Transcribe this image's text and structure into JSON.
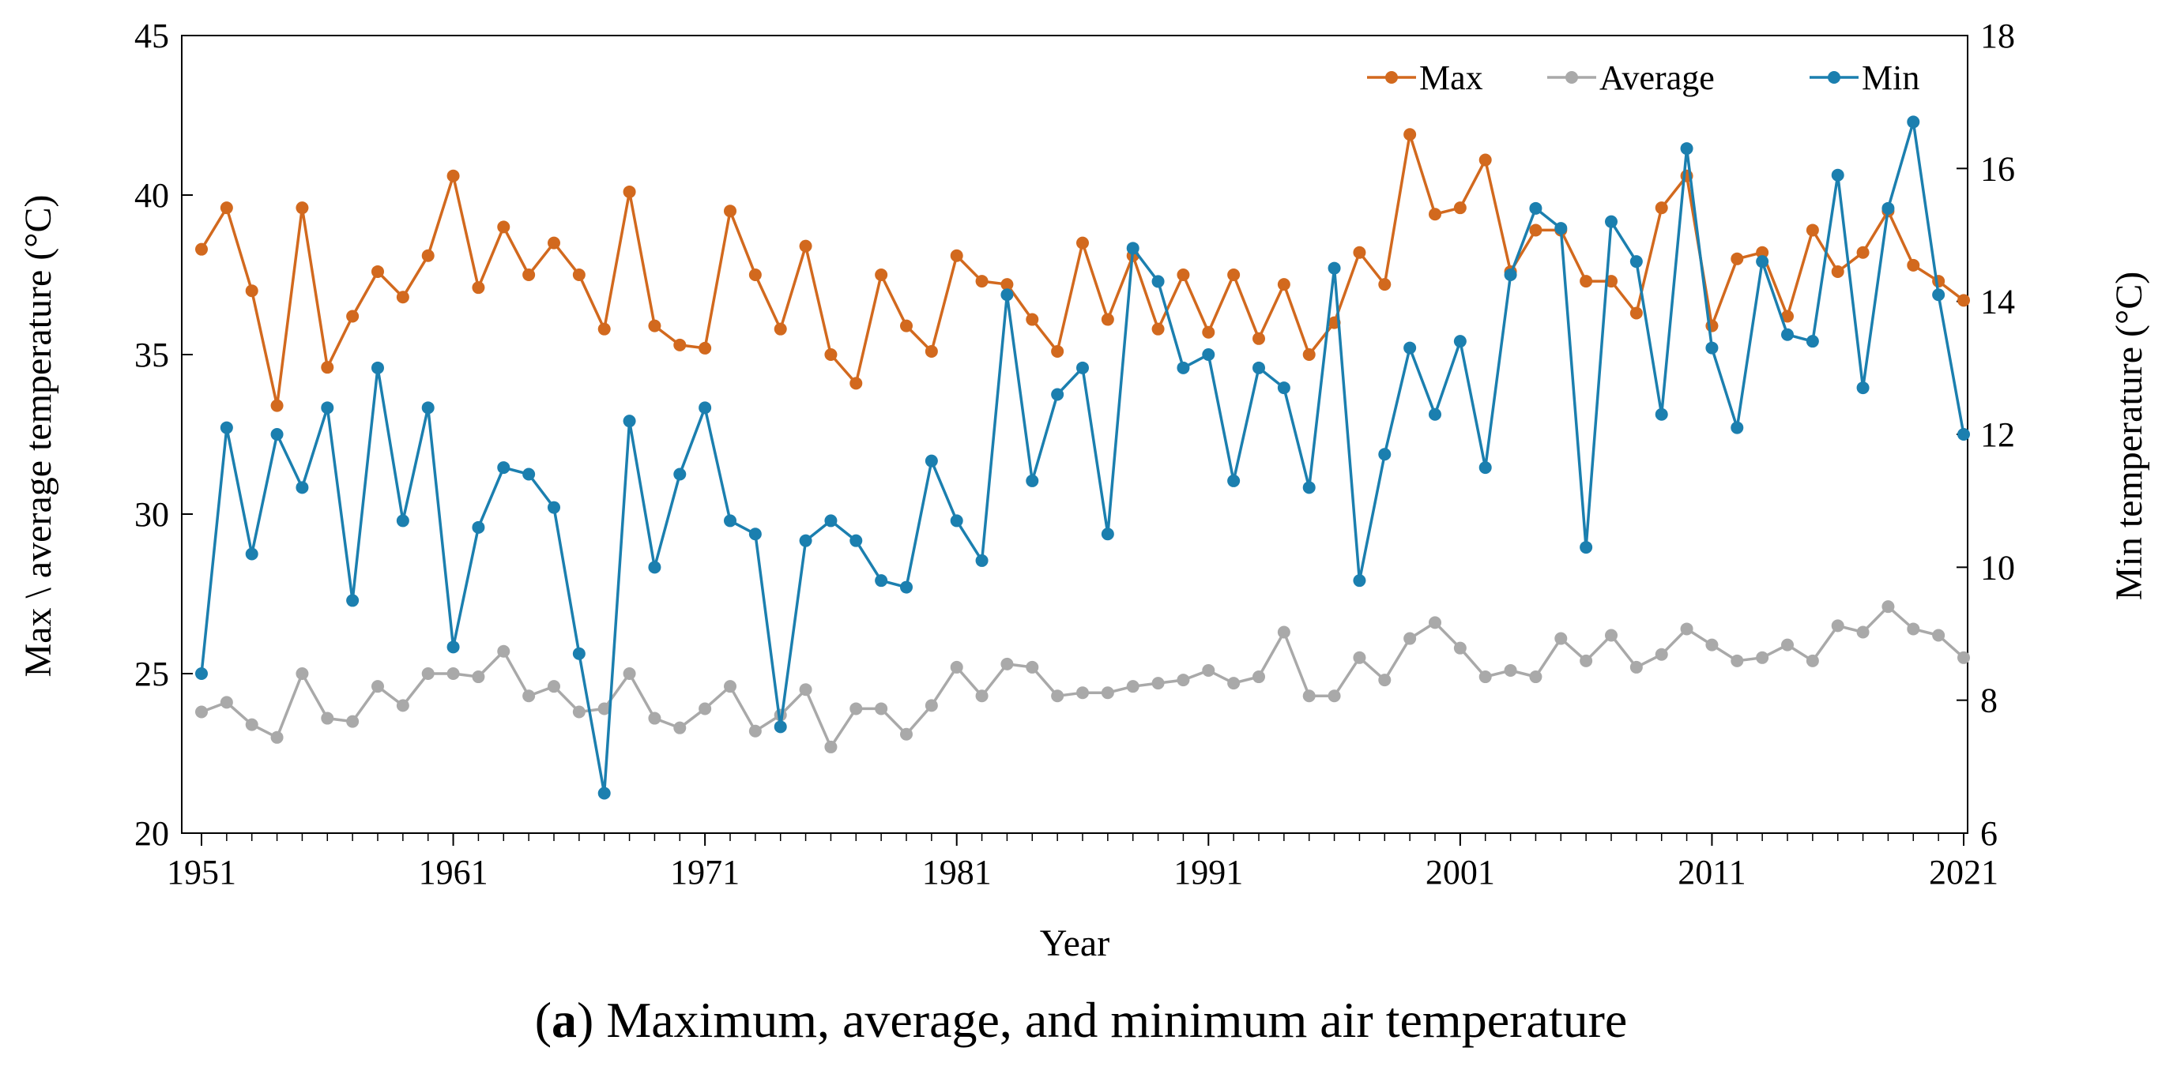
{
  "chart_data": {
    "type": "line",
    "x": [
      1951,
      1952,
      1953,
      1954,
      1955,
      1956,
      1957,
      1958,
      1959,
      1960,
      1961,
      1962,
      1963,
      1964,
      1965,
      1966,
      1967,
      1968,
      1969,
      1970,
      1971,
      1972,
      1973,
      1974,
      1975,
      1976,
      1977,
      1978,
      1979,
      1980,
      1981,
      1982,
      1983,
      1984,
      1985,
      1986,
      1987,
      1988,
      1989,
      1990,
      1991,
      1992,
      1993,
      1994,
      1995,
      1996,
      1997,
      1998,
      1999,
      2000,
      2001,
      2002,
      2003,
      2004,
      2005,
      2006,
      2007,
      2008,
      2009,
      2010,
      2011,
      2012,
      2013,
      2014,
      2015,
      2016,
      2017,
      2018,
      2019,
      2020,
      2021
    ],
    "x_ticks": [
      "1951",
      "1961",
      "1971",
      "1981",
      "1991",
      "2001",
      "2011",
      "2021"
    ],
    "xlabel": "Year",
    "ylabel_left": "Max \\ average temperature (°C)",
    "ylabel_right": "Min temperature (°C)",
    "ylim_left": [
      20,
      45
    ],
    "ylim_right": [
      6,
      18
    ],
    "yticks_left": [
      "20",
      "25",
      "30",
      "35",
      "40",
      "45"
    ],
    "yticks_right": [
      "6",
      "8",
      "10",
      "12",
      "14",
      "16",
      "18"
    ],
    "legend_position": "top-right",
    "series": [
      {
        "name": "Max",
        "axis": "left",
        "color": "#D2691E",
        "values": [
          38.3,
          39.6,
          37.0,
          33.4,
          39.6,
          34.6,
          36.2,
          37.6,
          36.8,
          38.1,
          40.6,
          37.1,
          39.0,
          37.5,
          38.5,
          37.5,
          35.8,
          40.1,
          35.9,
          35.3,
          35.2,
          39.5,
          37.5,
          35.8,
          38.4,
          35.0,
          34.1,
          37.5,
          35.9,
          35.1,
          38.1,
          37.3,
          37.2,
          36.1,
          35.1,
          38.5,
          36.1,
          38.1,
          35.8,
          37.5,
          35.7,
          37.5,
          35.5,
          37.2,
          35.0,
          36.0,
          38.2,
          37.2,
          41.9,
          39.4,
          39.6,
          41.1,
          37.6,
          38.9,
          38.9,
          37.3,
          37.3,
          36.3,
          39.6,
          40.6,
          35.9,
          38.0,
          38.2,
          36.2,
          38.9,
          37.6,
          38.2,
          39.5,
          37.8,
          37.3,
          36.7
        ]
      },
      {
        "name": "Average",
        "axis": "left",
        "color": "#A9A9A9",
        "values": [
          23.8,
          24.1,
          23.4,
          23.0,
          25.0,
          23.6,
          23.5,
          24.6,
          24.0,
          25.0,
          25.0,
          24.9,
          25.7,
          24.3,
          24.6,
          23.8,
          23.9,
          25.0,
          23.6,
          23.3,
          23.9,
          24.6,
          23.2,
          23.7,
          24.5,
          22.7,
          23.9,
          23.9,
          23.1,
          24.0,
          25.2,
          24.3,
          25.3,
          25.2,
          24.3,
          24.4,
          24.4,
          24.6,
          24.7,
          24.8,
          25.1,
          24.7,
          24.9,
          26.3,
          24.3,
          24.3,
          25.5,
          24.8,
          26.1,
          26.6,
          25.8,
          24.9,
          25.1,
          24.9,
          26.1,
          25.4,
          26.2,
          25.2,
          25.6,
          26.4,
          25.9,
          25.4,
          25.5,
          25.9,
          25.4,
          26.5,
          26.3,
          27.1,
          26.4,
          26.2,
          25.5
        ]
      },
      {
        "name": "Min",
        "axis": "right",
        "color": "#1B7FAF",
        "values": [
          8.4,
          12.1,
          10.2,
          12.0,
          11.2,
          12.4,
          9.5,
          13.0,
          10.7,
          12.4,
          8.8,
          10.6,
          11.5,
          11.4,
          10.9,
          8.7,
          6.6,
          12.2,
          10.0,
          11.4,
          12.4,
          10.7,
          10.5,
          7.6,
          10.4,
          10.7,
          10.4,
          9.8,
          9.7,
          11.6,
          10.7,
          10.1,
          14.1,
          11.3,
          12.6,
          13.0,
          10.5,
          14.8,
          14.3,
          13.0,
          13.2,
          11.3,
          13.0,
          12.7,
          11.2,
          14.5,
          9.8,
          11.7,
          13.3,
          12.3,
          13.4,
          11.5,
          14.4,
          15.4,
          15.1,
          10.3,
          15.2,
          14.6,
          12.3,
          16.3,
          13.3,
          12.1,
          14.6,
          13.5,
          13.4,
          15.9,
          12.7,
          15.4,
          16.7,
          14.1,
          12.0
        ]
      }
    ]
  },
  "caption": {
    "label": "a",
    "text": " Maximum, average, and minimum air temperature"
  }
}
